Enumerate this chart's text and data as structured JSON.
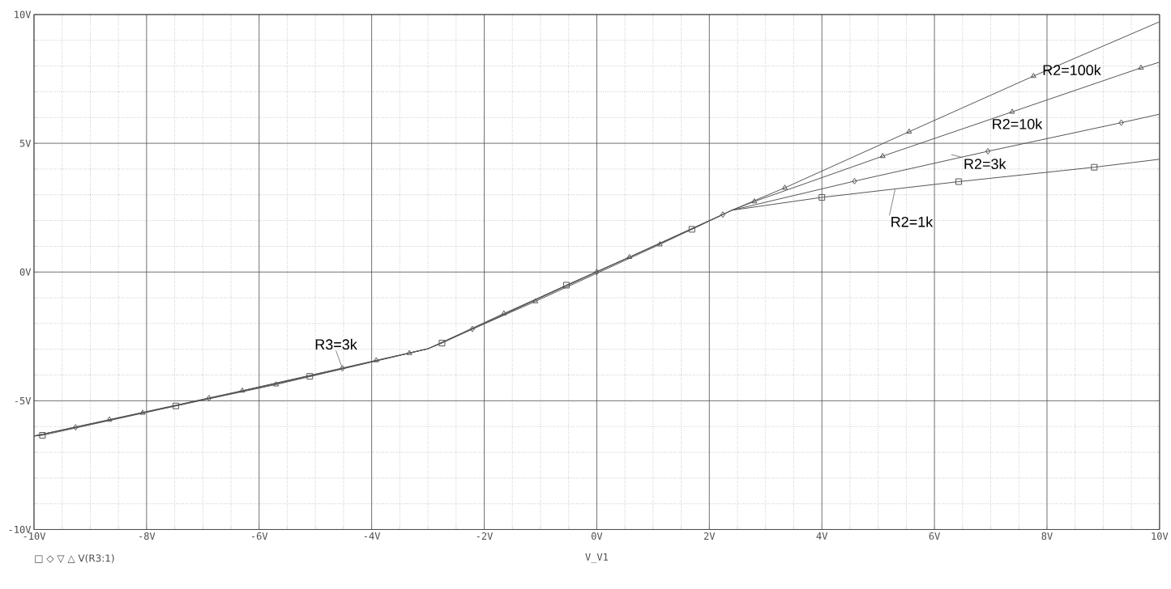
{
  "chart_data": {
    "type": "line",
    "xlabel": "V_V1",
    "xlim": [
      -10,
      10
    ],
    "ylim": [
      -10,
      10
    ],
    "xticks": [
      {
        "value": -10,
        "label": "-10V"
      },
      {
        "value": -8,
        "label": "-8V"
      },
      {
        "value": -6,
        "label": "-6V"
      },
      {
        "value": -4,
        "label": "-4V"
      },
      {
        "value": -2,
        "label": "-2V"
      },
      {
        "value": 0,
        "label": "0V"
      },
      {
        "value": 2,
        "label": "2V"
      },
      {
        "value": 4,
        "label": "4V"
      },
      {
        "value": 6,
        "label": "6V"
      },
      {
        "value": 8,
        "label": "8V"
      },
      {
        "value": 10,
        "label": "10V"
      }
    ],
    "yticks": [
      {
        "value": -10,
        "label": "-10V"
      },
      {
        "value": -5,
        "label": "-5V"
      },
      {
        "value": 0,
        "label": "0V"
      },
      {
        "value": 5,
        "label": "5V"
      },
      {
        "value": 10,
        "label": "10V"
      }
    ],
    "grid": true,
    "legend": false,
    "line_style": "solid",
    "series": [
      {
        "name": "R2=1k",
        "color": "#555555",
        "marker": "square",
        "x": [
          -10,
          -9.85,
          -7.48,
          -5.1,
          -3.0,
          -2.75,
          -0.54,
          1.69,
          2.4,
          4.0,
          6.43,
          8.84,
          10
        ],
        "values": [
          -6.37,
          -6.34,
          -5.2,
          -4.05,
          -2.98,
          -2.76,
          -0.51,
          1.66,
          2.4,
          2.9,
          3.51,
          4.07,
          4.38
        ]
      },
      {
        "name": "R2=3k",
        "color": "#555555",
        "marker": "diamond",
        "x": [
          -10,
          -9.26,
          -6.89,
          -4.52,
          -3.0,
          -2.21,
          0,
          2.24,
          2.4,
          4.58,
          6.95,
          9.32,
          10
        ],
        "values": [
          -6.37,
          -6.03,
          -4.9,
          -3.74,
          -2.98,
          -2.21,
          0,
          2.23,
          2.4,
          3.53,
          4.69,
          5.8,
          6.13
        ]
      },
      {
        "name": "R2=10k",
        "color": "#555555",
        "marker": "triangle",
        "x": [
          -10,
          -8.66,
          -6.3,
          -3.92,
          -3.0,
          -1.65,
          0.58,
          2.4,
          2.8,
          5.08,
          7.38,
          9.67,
          10
        ],
        "values": [
          -6.37,
          -5.73,
          -4.61,
          -3.43,
          -2.98,
          -1.61,
          0.58,
          2.4,
          2.74,
          4.5,
          6.22,
          7.93,
          8.15
        ]
      },
      {
        "name": "R2=100k",
        "color": "#555555",
        "marker": "triangle",
        "x": [
          -10,
          -8.07,
          -5.7,
          -3.33,
          -3.0,
          -1.09,
          1.12,
          2.4,
          3.34,
          5.55,
          7.76,
          10
        ],
        "values": [
          -6.37,
          -5.47,
          -4.37,
          -3.15,
          -2.98,
          -1.14,
          1.07,
          2.4,
          3.27,
          5.45,
          7.61,
          9.72
        ]
      }
    ],
    "annotations": [
      {
        "text": "R3=3k",
        "x": -4.52,
        "y": -3.74
      },
      "□ ◇ ▽ △ V(R3:1)"
    ]
  }
}
